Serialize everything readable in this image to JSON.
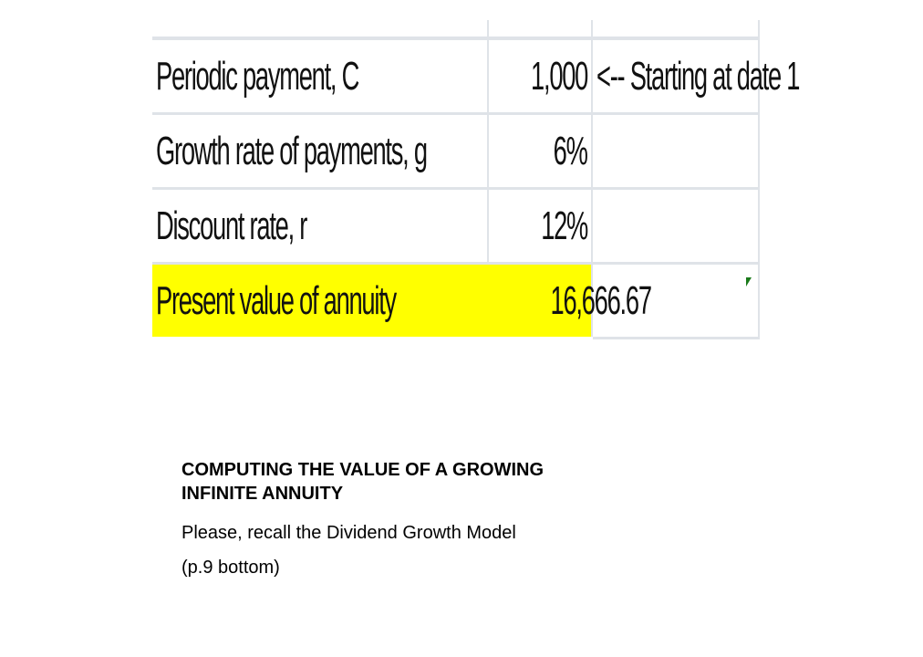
{
  "spreadsheet": {
    "rows": [
      {
        "label": "Periodic payment, C",
        "value": "1,000",
        "note": "<-- Starting at date 1"
      },
      {
        "label": "Growth rate of payments, g",
        "value": "6%",
        "note": ""
      },
      {
        "label": "Discount rate, r",
        "value": "12%",
        "note": ""
      },
      {
        "label": "Present value of annuity",
        "value": "16,666.67",
        "note": ""
      }
    ],
    "highlight_color": "#FFFF00",
    "formula_indicator_color": "#1A7A1A"
  },
  "caption": {
    "title_line1": "COMPUTING THE VALUE OF A GROWING",
    "title_line2": "INFINITE ANNUITY",
    "line1": "Please, recall the Dividend Growth Model",
    "line2": "(p.9 bottom)"
  }
}
